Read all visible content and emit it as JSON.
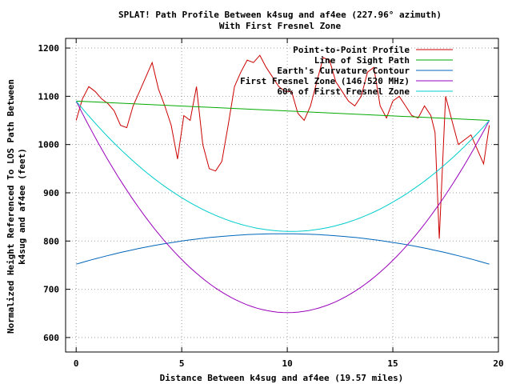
{
  "chart_data": {
    "type": "line",
    "title": "SPLAT! Path Profile Between k4sug and af4ee (227.96° azimuth)",
    "subtitle": "With First Fresnel Zone",
    "xlabel": "Distance Between k4sug and af4ee (19.57 miles)",
    "ylabel_line1": "Normalized Height Referenced To LOS Path Between",
    "ylabel_line2": "k4sug and af4ee (feet)",
    "xlim": [
      -0.5,
      20
    ],
    "ylim": [
      570,
      1220
    ],
    "x_ticks": [
      0,
      5,
      10,
      15,
      20
    ],
    "y_ticks": [
      600,
      700,
      800,
      900,
      1000,
      1100,
      1200
    ],
    "grid": true,
    "legend_position": "top-right",
    "series": [
      {
        "name": "Point-to-Point Profile",
        "color": "#cc0000",
        "x": [
          0,
          0.3,
          0.6,
          0.9,
          1.2,
          1.5,
          1.8,
          2.1,
          2.4,
          2.7,
          3.0,
          3.3,
          3.6,
          3.9,
          4.2,
          4.5,
          4.8,
          5.1,
          5.4,
          5.7,
          6.0,
          6.3,
          6.6,
          6.9,
          7.2,
          7.5,
          7.8,
          8.1,
          8.4,
          8.7,
          9.0,
          9.3,
          9.6,
          9.9,
          10.2,
          10.5,
          10.8,
          11.1,
          11.4,
          11.7,
          12.0,
          12.3,
          12.6,
          12.9,
          13.2,
          13.5,
          13.8,
          14.1,
          14.4,
          14.7,
          15.0,
          15.3,
          15.6,
          15.9,
          16.2,
          16.5,
          16.8,
          17.0,
          17.2,
          17.5,
          17.8,
          18.1,
          18.4,
          18.7,
          19.0,
          19.3,
          19.57
        ],
        "values": [
          1050,
          1095,
          1120,
          1110,
          1095,
          1085,
          1070,
          1040,
          1035,
          1080,
          1110,
          1140,
          1170,
          1115,
          1080,
          1040,
          970,
          1060,
          1050,
          1120,
          1000,
          950,
          945,
          965,
          1040,
          1120,
          1150,
          1175,
          1170,
          1185,
          1160,
          1140,
          1120,
          1110,
          1110,
          1065,
          1050,
          1080,
          1130,
          1180,
          1175,
          1130,
          1110,
          1090,
          1080,
          1100,
          1150,
          1160,
          1080,
          1055,
          1090,
          1100,
          1080,
          1060,
          1055,
          1080,
          1060,
          1025,
          805,
          1100,
          1050,
          1000,
          1010,
          1020,
          990,
          960,
          1040
        ]
      },
      {
        "name": "Line of Sight Path",
        "color": "#00aa00",
        "x": [
          0,
          19.57
        ],
        "values": [
          1090,
          1050
        ]
      },
      {
        "name": "Earth's Curvature Contour",
        "color": "#0066bb",
        "x": [
          0,
          10.2,
          19.57
        ],
        "values": [
          752,
          815,
          752
        ]
      },
      {
        "name": "First Fresnel Zone (146.520 MHz)",
        "color": "#9900bb",
        "x": [
          0,
          10.3,
          19.57
        ],
        "values": [
          1090,
          652,
          1050
        ]
      },
      {
        "name": "60% of First Fresnel Zone",
        "color": "#00cccc",
        "x": [
          0,
          10.3,
          19.57
        ],
        "values": [
          1090,
          820,
          1050
        ]
      }
    ]
  }
}
